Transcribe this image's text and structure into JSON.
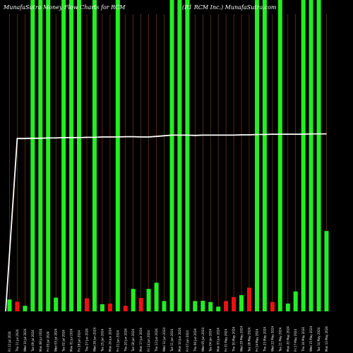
{
  "title": "MunafaSutra  Money Flow  Charts for RCM",
  "subtitle": "(R1 RCM Inc.) MunafaSutra.com",
  "chart_data": {
    "type": "bar",
    "title": "MunafaSutra  Money Flow  Charts for RCM",
    "subtitle": "(R1 RCM Inc.) MunafaSutra.com",
    "xlabel": "",
    "ylabel": "",
    "grid": true,
    "ylim": [
      0,
      100
    ],
    "colors": {
      "background": "#000000",
      "grid": "#8b4513",
      "up": "#22ee22",
      "down": "#ee1111",
      "line": "#ffffff"
    },
    "categories": [
      "Fri 12 Jul 2024",
      "Thu 11 Jul 2024",
      "Wed 10 Jul 2024",
      "Tue 09 Jul 2024",
      "Mon 08 Jul 2024",
      "Fri 05 Jul 2024",
      "Wed 03 Jul 2024",
      "Tue 02 Jul 2024",
      "Mon 01 Jul 2024",
      "Fri 28 Jun 2024",
      "Thu 27 Jun 2024",
      "Wed 26 Jun 2024",
      "Tue 25 Jun 2024",
      "Mon 24 Jun 2024",
      "Fri 21 Jun 2024",
      "Thu 20 Jun 2024",
      "Tue 18 Jun 2024",
      "Mon 17 Jun 2024",
      "Fri 14 Jun 2024",
      "Thu 13 Jun 2024",
      "Wed 12 Jun 2024",
      "Tue 11 Jun 2024",
      "Mon 10 Jun 2024",
      "Fri 07 Jun 2024",
      "Thu 06 Jun 2024",
      "Wed 05 Jun 2024",
      "Tue 04 Jun 2024",
      "Mon 03 Jun 2024",
      "Fri 31 May 2024",
      "Thu 30 May 2024",
      "Wed 29 May 2024",
      "Tue 28 May 2024",
      "Fri 24 May 2024",
      "Thu 23 May 2024",
      "Wed 22 May 2024",
      "Tue 21 May 2024",
      "Mon 20 May 2024",
      "Fri 17 May 2024",
      "Thu 16 May 2024",
      "Wed 15 May 2024",
      "Tue 14 May 2024",
      "Mon 13 May 2024"
    ],
    "series": [
      {
        "values": [
          3.8,
          3.1,
          1.8,
          100,
          100,
          100,
          4.4,
          100,
          100,
          100,
          4.2,
          100,
          2.3,
          2.5,
          100,
          1.8,
          7.2,
          4.3,
          7.2,
          9.2,
          3.3,
          100,
          100,
          100,
          3.3,
          3.4,
          3.0,
          1.5,
          3.3,
          4.6,
          5.2,
          7.6,
          100,
          100,
          3.0,
          100,
          2.5,
          6.4,
          100,
          100,
          100,
          25.8
        ],
        "colors": [
          "up",
          "down",
          "up",
          "up",
          "up",
          "up",
          "up",
          "up",
          "up",
          "up",
          "down",
          "up",
          "up",
          "down",
          "up",
          "down",
          "up",
          "down",
          "up",
          "up",
          "up",
          "up",
          "up",
          "up",
          "up",
          "up",
          "up",
          "up",
          "down",
          "down",
          "up",
          "down",
          "up",
          "up",
          "down",
          "up",
          "up",
          "up",
          "up",
          "up",
          "up",
          "up"
        ]
      }
    ],
    "line": {
      "values": [
        0,
        55.5,
        55.5,
        55.6,
        55.6,
        55.7,
        55.7,
        55.8,
        55.8,
        55.8,
        55.9,
        55.9,
        56.0,
        56.0,
        56.0,
        56.1,
        56.1,
        56.0,
        56.0,
        56.2,
        56.4,
        56.6,
        56.6,
        56.6,
        56.5,
        56.6,
        56.6,
        56.6,
        56.6,
        56.6,
        56.7,
        56.7,
        56.8,
        56.8,
        56.9,
        56.9,
        56.9,
        56.9,
        56.9,
        57.0,
        57.0,
        57.0
      ]
    }
  }
}
